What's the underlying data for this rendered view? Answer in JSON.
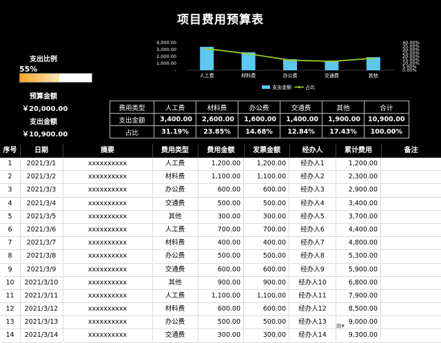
{
  "title": "项目费用预算表",
  "expense_ratio": {
    "label": "支出比例",
    "value": "55%",
    "fill": 0.55
  },
  "budget": {
    "label": "预算金额",
    "value": "￥20,000.00"
  },
  "spent": {
    "label": "支出金额",
    "value": "￥10,900.00"
  },
  "summary": {
    "headers": [
      "费用类型",
      "人工费",
      "材料费",
      "办公费",
      "交通费",
      "其他",
      "合计"
    ],
    "amount_row": [
      "支出金额",
      "3,400.00",
      "2,600.00",
      "1,600.00",
      "1,400.00",
      "1,900.00",
      "10,900.00"
    ],
    "ratio_row": [
      "占比",
      "31.19%",
      "23.85%",
      "14.68%",
      "12.84%",
      "17.43%",
      "100.00%"
    ]
  },
  "chart_data": {
    "type": "bar",
    "categories": [
      "人工费",
      "材料费",
      "办公费",
      "交通费",
      "其他"
    ],
    "series": [
      {
        "name": "支出金额",
        "values": [
          3400,
          2600,
          1600,
          1400,
          1900
        ],
        "axis": "left",
        "color": "#5bc8f0"
      },
      {
        "name": "占比",
        "type": "line",
        "values": [
          31.19,
          23.85,
          14.68,
          12.84,
          17.43
        ],
        "axis": "right",
        "color": "#9ccc2d"
      }
    ],
    "y_left_ticks": [
      "4,000.00",
      "3,000.00",
      "2,000.00",
      "1,000.00",
      "-"
    ],
    "y_left_range": [
      0,
      4000
    ],
    "y_right_ticks": [
      "40.00%",
      "35.00%",
      "30.00%",
      "25.00%",
      "20.00%",
      "15.00%",
      "10.00%",
      "5.00%",
      "0.00%"
    ],
    "y_right_range": [
      0,
      40
    ],
    "legend": "bottom",
    "legend_labels": [
      "支出金额",
      "占比"
    ]
  },
  "columns": [
    "序号",
    "日期",
    "摘要",
    "费用类型",
    "费用金额",
    "发票金额",
    "经办人",
    "累计费用",
    "备注"
  ],
  "rows": [
    {
      "no": "1",
      "date": "2021/3/1",
      "summary": "xxxxxxxxxx",
      "type": "人工费",
      "amount": "1,200.00",
      "invoice": "1,200.00",
      "handler": "经办人1",
      "cumulative": "1,200.00",
      "note": ""
    },
    {
      "no": "2",
      "date": "2021/3/2",
      "summary": "xxxxxxxxxx",
      "type": "材料费",
      "amount": "1,100.00",
      "invoice": "1,100.00",
      "handler": "经办人2",
      "cumulative": "2,300.00",
      "note": ""
    },
    {
      "no": "3",
      "date": "2021/3/3",
      "summary": "xxxxxxxxxx",
      "type": "办公费",
      "amount": "600.00",
      "invoice": "600.00",
      "handler": "经办人3",
      "cumulative": "2,900.00",
      "note": ""
    },
    {
      "no": "4",
      "date": "2021/3/4",
      "summary": "xxxxxxxxxx",
      "type": "交通费",
      "amount": "500.00",
      "invoice": "500.00",
      "handler": "经办人4",
      "cumulative": "3,400.00",
      "note": ""
    },
    {
      "no": "5",
      "date": "2021/3/5",
      "summary": "xxxxxxxxxx",
      "type": "其他",
      "amount": "300.00",
      "invoice": "300.00",
      "handler": "经办人5",
      "cumulative": "3,700.00",
      "note": ""
    },
    {
      "no": "6",
      "date": "2021/3/6",
      "summary": "xxxxxxxxxx",
      "type": "人工费",
      "amount": "700.00",
      "invoice": "700.00",
      "handler": "经办人6",
      "cumulative": "4,400.00",
      "note": ""
    },
    {
      "no": "7",
      "date": "2021/3/7",
      "summary": "xxxxxxxxxx",
      "type": "材料费",
      "amount": "400.00",
      "invoice": "400.00",
      "handler": "经办人7",
      "cumulative": "4,800.00",
      "note": ""
    },
    {
      "no": "8",
      "date": "2021/3/8",
      "summary": "xxxxxxxxxx",
      "type": "办公费",
      "amount": "500.00",
      "invoice": "500.00",
      "handler": "经办人8",
      "cumulative": "5,300.00",
      "note": ""
    },
    {
      "no": "9",
      "date": "2021/3/9",
      "summary": "xxxxxxxxxx",
      "type": "交通费",
      "amount": "600.00",
      "invoice": "600.00",
      "handler": "经办人9",
      "cumulative": "5,900.00",
      "note": ""
    },
    {
      "no": "10",
      "date": "2021/3/10",
      "summary": "xxxxxxxxxx",
      "type": "其他",
      "amount": "900.00",
      "invoice": "900.00",
      "handler": "经办人10",
      "cumulative": "6,800.00",
      "note": ""
    },
    {
      "no": "11",
      "date": "2021/3/11",
      "summary": "xxxxxxxxxx",
      "type": "人工费",
      "amount": "1,100.00",
      "invoice": "1,100.00",
      "handler": "经办人11",
      "cumulative": "7,900.00",
      "note": ""
    },
    {
      "no": "12",
      "date": "2021/3/12",
      "summary": "xxxxxxxxxx",
      "type": "材料费",
      "amount": "600.00",
      "invoice": "600.00",
      "handler": "经办人12",
      "cumulative": "8,500.00",
      "note": ""
    },
    {
      "no": "13",
      "date": "2021/3/13",
      "summary": "xxxxxxxxxx",
      "type": "办公费",
      "amount": "500.00",
      "invoice": "500.00",
      "handler": "经办人13",
      "cumulative": "9,000.00",
      "note": ""
    },
    {
      "no": "14",
      "date": "2021/3/14",
      "summary": "xxxxxxxxxx",
      "type": "交通费",
      "amount": "300.00",
      "invoice": "300.00",
      "handler": "经办人14",
      "cumulative": "9,300.00",
      "note": ""
    }
  ],
  "quick_analysis_icon": "quick-analysis-icon"
}
